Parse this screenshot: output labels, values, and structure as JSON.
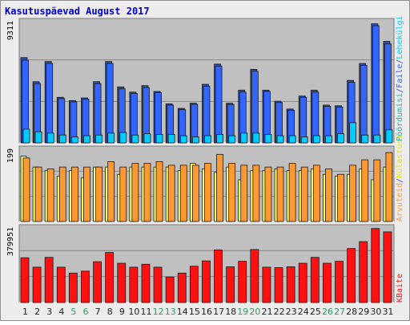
{
  "title": "Kasutuspäevad August 2017",
  "colors": {
    "panel_bg": "#c0c0c0",
    "frame_bg": "#ececec",
    "title": "#0000cc",
    "visits": "#3366ff",
    "pages": "#00ccff",
    "hits_legend": "#33aaaa",
    "separator": "#3333ff",
    "hosts": "#ffff66",
    "files": "#ff9933",
    "bytes": "#ff1111",
    "weekend_tick": "#339966",
    "weekday_tick": "#222222"
  },
  "chart_data": [
    {
      "type": "bar",
      "panel": "top",
      "ymax_label": "9311",
      "ylim": [
        0,
        9311
      ],
      "legend": [
        "Pöördumisi",
        "Faile",
        "Lehekülgi"
      ],
      "categories": [
        "1",
        "2",
        "3",
        "4",
        "5",
        "6",
        "7",
        "8",
        "9",
        "10",
        "11",
        "12",
        "13",
        "14",
        "15",
        "16",
        "17",
        "18",
        "19",
        "20",
        "21",
        "22",
        "23",
        "24",
        "25",
        "26",
        "27",
        "28",
        "29",
        "30",
        "31"
      ],
      "weekend_days": [
        "5",
        "6",
        "12",
        "13",
        "19",
        "20",
        "26",
        "27"
      ],
      "series": [
        {
          "name": "Pöördumisi",
          "values": [
            6550,
            4700,
            6250,
            3500,
            3250,
            3450,
            4700,
            6250,
            4300,
            3900,
            4400,
            3950,
            3000,
            2650,
            3050,
            4500,
            6050,
            3050,
            4050,
            5650,
            4050,
            3200,
            2600,
            3600,
            4050,
            2900,
            2850,
            4800,
            6100,
            9150,
            7800
          ]
        },
        {
          "name": "Faile",
          "values": [
            6350,
            4550,
            6100,
            3400,
            3150,
            3350,
            4550,
            6100,
            4150,
            3800,
            4250,
            3850,
            2900,
            2550,
            2950,
            4350,
            5900,
            2950,
            3900,
            5500,
            3950,
            3100,
            2500,
            3500,
            3900,
            2800,
            2750,
            4650,
            5950,
            9000,
            7600
          ]
        },
        {
          "name": "Lehekülgi",
          "values": [
            1050,
            850,
            750,
            600,
            450,
            550,
            600,
            750,
            800,
            600,
            700,
            650,
            650,
            550,
            450,
            550,
            650,
            550,
            750,
            750,
            650,
            550,
            550,
            450,
            550,
            550,
            700,
            1550,
            600,
            600,
            1000
          ]
        }
      ]
    },
    {
      "type": "bar",
      "panel": "middle",
      "ymax_label": "199",
      "ylim": [
        0,
        199
      ],
      "legend": [
        "Arvuteid",
        "Külastusi"
      ],
      "categories": [
        "1",
        "2",
        "3",
        "4",
        "5",
        "6",
        "7",
        "8",
        "9",
        "10",
        "11",
        "12",
        "13",
        "14",
        "15",
        "16",
        "17",
        "18",
        "19",
        "20",
        "21",
        "22",
        "23",
        "24",
        "25",
        "26",
        "27",
        "28",
        "29",
        "30",
        "31"
      ],
      "series": [
        {
          "name": "Külastusi",
          "values": [
            180,
            150,
            140,
            125,
            140,
            120,
            150,
            150,
            130,
            150,
            150,
            150,
            150,
            140,
            160,
            145,
            135,
            150,
            115,
            140,
            140,
            145,
            140,
            140,
            145,
            130,
            125,
            130,
            145,
            115,
            150
          ]
        },
        {
          "name": "Arvuteid",
          "values": [
            175,
            150,
            145,
            150,
            150,
            150,
            150,
            165,
            150,
            160,
            160,
            165,
            155,
            155,
            155,
            160,
            185,
            160,
            155,
            155,
            150,
            150,
            160,
            150,
            155,
            145,
            130,
            155,
            170,
            170,
            190
          ]
        }
      ]
    },
    {
      "type": "bar",
      "panel": "bottom",
      "ymax_label": "379951",
      "ylim": [
        0,
        379951
      ],
      "legend": [
        "KBaite"
      ],
      "categories": [
        "1",
        "2",
        "3",
        "4",
        "5",
        "6",
        "7",
        "8",
        "9",
        "10",
        "11",
        "12",
        "13",
        "14",
        "15",
        "16",
        "17",
        "18",
        "19",
        "20",
        "21",
        "22",
        "23",
        "24",
        "25",
        "26",
        "27",
        "28",
        "29",
        "30",
        "31"
      ],
      "series": [
        {
          "name": "KBaite",
          "values": [
            228000,
            180000,
            230000,
            180000,
            150000,
            160000,
            208000,
            255000,
            200000,
            180000,
            195000,
            180000,
            130000,
            150000,
            185000,
            212000,
            268000,
            182000,
            210000,
            270000,
            180000,
            178000,
            182000,
            200000,
            230000,
            200000,
            210000,
            275000,
            310000,
            377000,
            360000
          ]
        }
      ]
    }
  ]
}
